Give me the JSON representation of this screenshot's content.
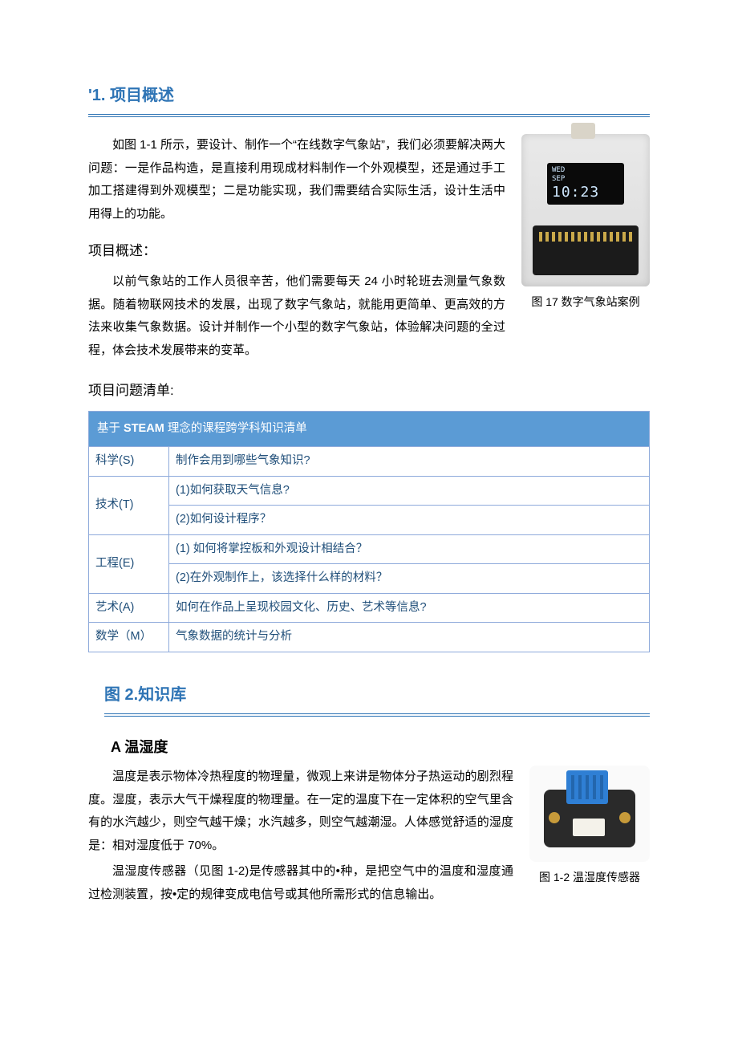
{
  "section1": {
    "heading": "'1. 项目概述",
    "intro": "如图 1-1 所示，要设计、制作一个“在线数字气象站”，我们必须要解决两大问题：一是作品构造，是直接利用现成材料制作一个外观模型，还是通过手工加工搭建得到外观模型；二是功能实现，我们需要结合实际生活，设计生活中用得上的功能。",
    "overview_heading": "项目概述：",
    "overview_body": "以前气象站的工作人员很辛苦，他们需要每天 24 小时轮班去测量气象数据。随着物联网技术的发展，出现了数字气象站，就能用更简单、更高效的方法来收集气象数据。设计并制作一个小型的数字气象站，体验解决问题的全过程，体会技术发展带来的变革。",
    "fig1_caption": "图 17 数字气象站案例",
    "device_screen": {
      "line1": "WED",
      "line2": "SEP",
      "time": "10:23"
    },
    "question_heading": "项目问题清单:"
  },
  "steam_table": {
    "header": "基于 STEAM 理念的课程跨学科知识清单",
    "rows": [
      {
        "label": "科学(S)",
        "lines": [
          "制作会用到哪些气象知识?"
        ]
      },
      {
        "label": "技术(T)",
        "lines": [
          "(1)如何获取天气信息?",
          "(2)如何设计程序？"
        ]
      },
      {
        "label": "工程(E)",
        "lines": [
          "(1) 如何将掌控板和外观设计相结合？",
          "(2)在外观制作上，该选择什么样的材料？"
        ]
      },
      {
        "label": "艺术(A)",
        "lines": [
          "如何在作品上呈现校园文化、历史、艺术等信息?"
        ]
      },
      {
        "label": "数学（M）",
        "lines": [
          "气象数据的统计与分析"
        ]
      }
    ]
  },
  "section2": {
    "heading": "图 2.知识库",
    "sub_a": "A 温湿度",
    "para1": "温度是表示物体冷热程度的物理量，微观上来讲是物体分子热运动的剧烈程度。湿度，表示大气干燥程度的物理量。在一定的温度下在一定体积的空气里含有的水汽越少，则空气越干燥；水汽越多，则空气越潮湿。人体感觉舒适的湿度是：相对湿度低于 70%。",
    "para2": "温湿度传感器（见图 1-2)是传感器其中的•种，是把空气中的温度和湿度通过检测装置，按•定的规律变成电信号或其他所需形式的信息输出。",
    "fig2_caption": "图 1-2 温湿度传感器"
  },
  "colors": {
    "heading": "#2e74b5",
    "table_header_bg": "#5b9bd5",
    "table_border": "#8eaadb",
    "table_text": "#1f4e79"
  }
}
